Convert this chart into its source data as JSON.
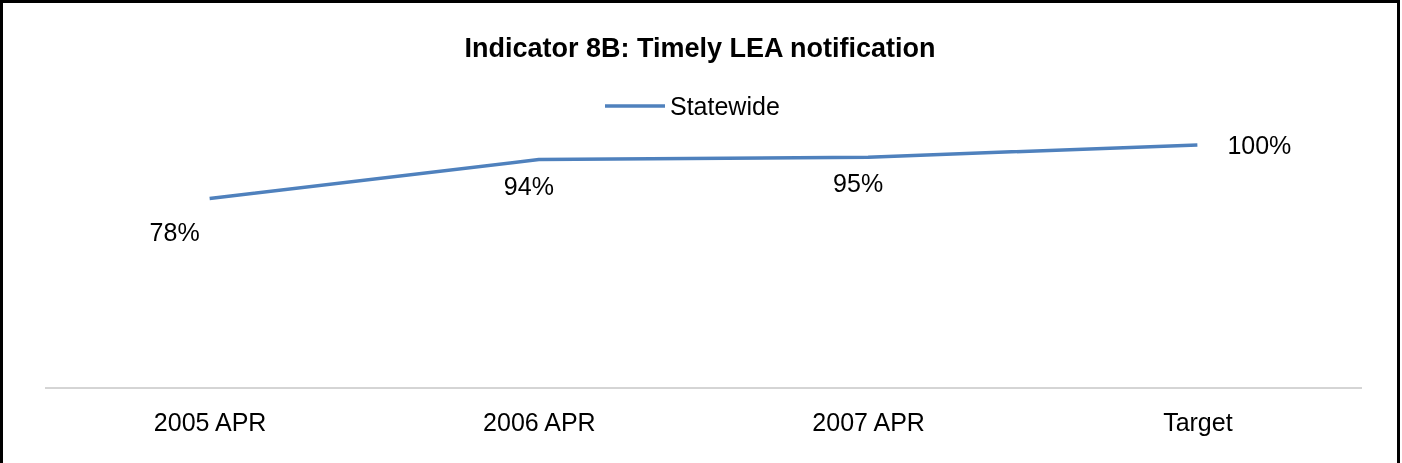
{
  "chart_data": {
    "type": "line",
    "title": "Indicator 8B: Timely LEA notification",
    "categories": [
      "2005 APR",
      "2006 APR",
      "2007 APR",
      "Target"
    ],
    "series": [
      {
        "name": "Statewide",
        "color": "#4f81bd",
        "values": [
          78,
          94,
          95,
          100
        ],
        "value_labels": [
          "78%",
          "94%",
          "95%",
          "100%"
        ]
      }
    ],
    "tick_labels": "x",
    "legend": "top",
    "marker": "none",
    "line_style": "solid"
  }
}
